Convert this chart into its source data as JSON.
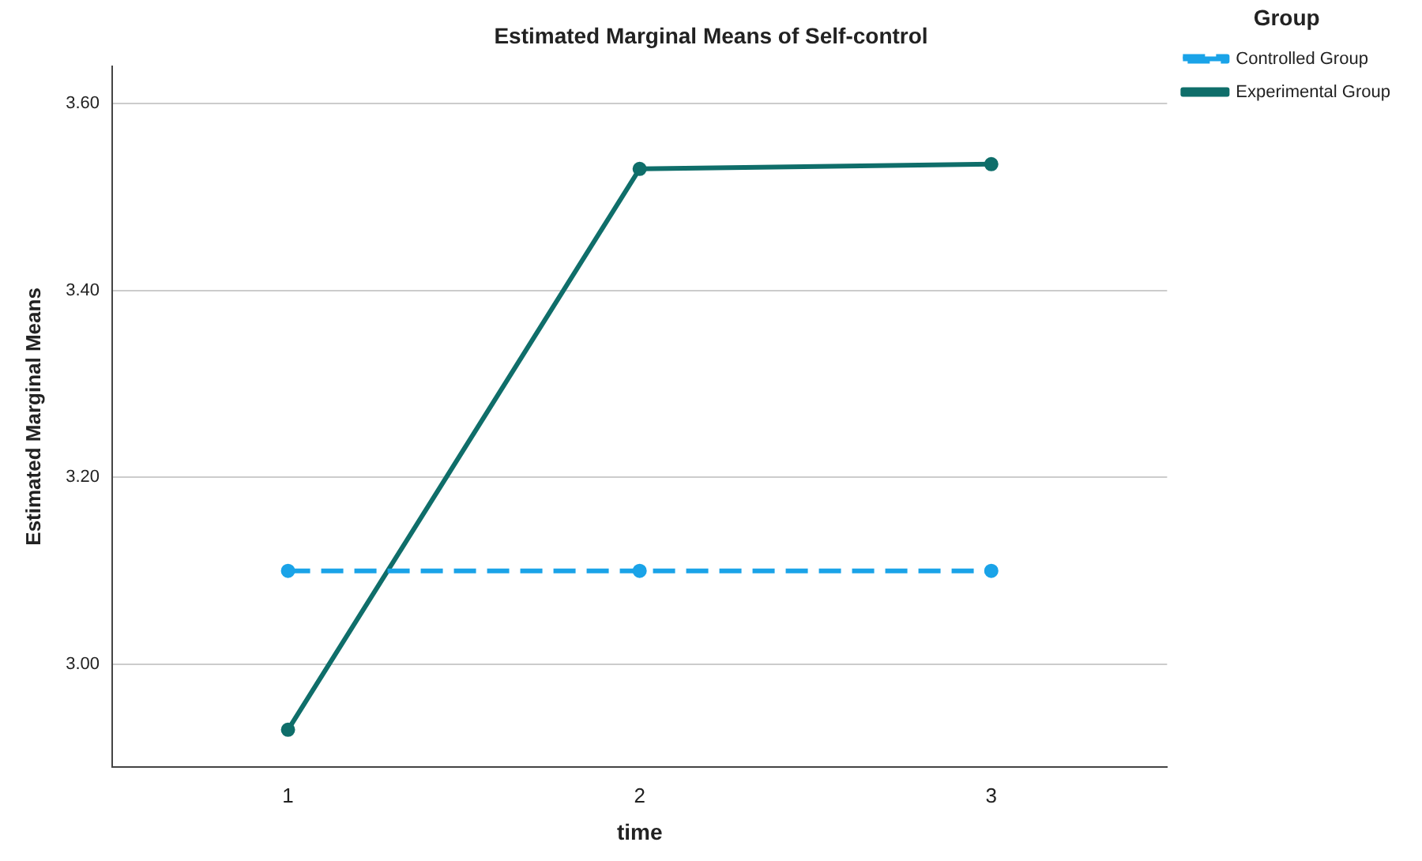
{
  "chart_data": {
    "type": "line",
    "title": "Estimated Marginal Means of Self-control",
    "xlabel": "time",
    "ylabel": "Estimated Marginal Means",
    "legend_title": "Group",
    "categories": [
      "1",
      "2",
      "3"
    ],
    "series": [
      {
        "name": "Controlled Group",
        "color": "#1aa3e8",
        "values": [
          3.1,
          3.1,
          3.1
        ],
        "line_style": "dashed"
      },
      {
        "name": "Experimental Group",
        "color": "#0f6e6a",
        "values": [
          2.93,
          3.53,
          3.535
        ],
        "line_style": "solid"
      }
    ],
    "ylim": [
      2.89,
      3.64
    ],
    "yticks": [
      {
        "value": 3.0,
        "label": "3.00"
      },
      {
        "value": 3.2,
        "label": "3.20"
      },
      {
        "value": 3.4,
        "label": "3.40"
      },
      {
        "value": 3.6,
        "label": "3.60"
      }
    ],
    "grid": "y",
    "legend": "top right",
    "marker": "circle"
  }
}
